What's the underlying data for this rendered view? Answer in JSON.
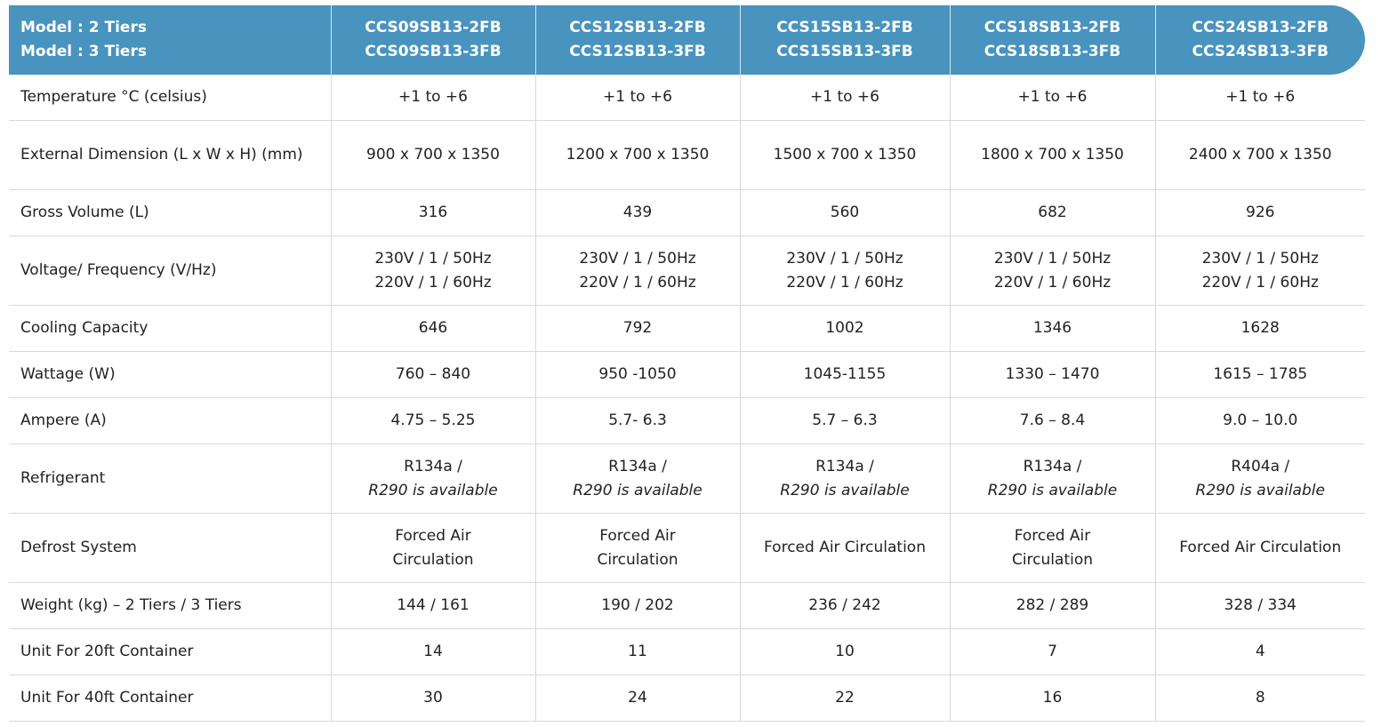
{
  "header": {
    "label_line1": "Model : 2 Tiers",
    "label_line2": "Model : 3 Tiers",
    "models": [
      {
        "tier2": "CCS09SB13-2FB",
        "tier3": "CCS09SB13-3FB"
      },
      {
        "tier2": "CCS12SB13-2FB",
        "tier3": "CCS12SB13-3FB"
      },
      {
        "tier2": "CCS15SB13-2FB",
        "tier3": "CCS15SB13-3FB"
      },
      {
        "tier2": "CCS18SB13-2FB",
        "tier3": "CCS18SB13-3FB"
      },
      {
        "tier2": "CCS24SB13-2FB",
        "tier3": "CCS24SB13-3FB"
      }
    ]
  },
  "rows": [
    {
      "label": "Temperature °C (celsius)",
      "values": [
        "+1 to +6",
        "+1 to +6",
        "+1 to +6",
        "+1 to +6",
        "+1 to +6"
      ]
    },
    {
      "label": "External Dimension (L x W x H) (mm)",
      "values": [
        "900 x 700 x 1350",
        "1200 x 700 x 1350",
        "1500 x 700 x 1350",
        "1800 x 700 x 1350",
        "2400 x 700 x 1350"
      ]
    },
    {
      "label": "Gross Volume (L)",
      "values": [
        "316",
        "439",
        "560",
        "682",
        "926"
      ]
    },
    {
      "label": "Voltage/ Frequency (V/Hz)",
      "values": [
        {
          "line1": "230V / 1 / 50Hz",
          "line2": "220V / 1 / 60Hz"
        },
        {
          "line1": "230V / 1 / 50Hz",
          "line2": "220V / 1 / 60Hz"
        },
        {
          "line1": "230V / 1 / 50Hz",
          "line2": "220V / 1 / 60Hz"
        },
        {
          "line1": "230V / 1 / 50Hz",
          "line2": "220V / 1 / 60Hz"
        },
        {
          "line1": "230V / 1 / 50Hz",
          "line2": "220V / 1 / 60Hz"
        }
      ]
    },
    {
      "label": "Cooling Capacity",
      "values": [
        "646",
        "792",
        "1002",
        "1346",
        "1628"
      ]
    },
    {
      "label": "Wattage (W)",
      "values": [
        "760 – 840",
        "950 -1050",
        "1045-1155",
        "1330 – 1470",
        "1615 – 1785"
      ]
    },
    {
      "label": "Ampere (A)",
      "values": [
        "4.75 – 5.25",
        "5.7- 6.3",
        "5.7 – 6.3",
        "7.6 – 8.4",
        "9.0 – 10.0"
      ]
    },
    {
      "label": "Refrigerant",
      "values": [
        {
          "line1": "R134a /",
          "line2": "R290 is available"
        },
        {
          "line1": "R134a /",
          "line2": "R290 is available"
        },
        {
          "line1": "R134a /",
          "line2": "R290 is available"
        },
        {
          "line1": "R134a /",
          "line2": "R290 is available"
        },
        {
          "line1": "R404a /",
          "line2": "R290 is available"
        }
      ]
    },
    {
      "label": "Defrost System",
      "values": [
        {
          "line1": "Forced Air",
          "line2": "Circulation"
        },
        {
          "line1": "Forced Air",
          "line2": "Circulation"
        },
        "Forced Air Circulation",
        {
          "line1": "Forced Air",
          "line2": "Circulation"
        },
        "Forced Air Circulation"
      ]
    },
    {
      "label": "Weight (kg) – 2 Tiers / 3 Tiers",
      "values": [
        "144 / 161",
        "190 / 202",
        "236 / 242",
        "282 / 289",
        "328 / 334"
      ]
    },
    {
      "label": "Unit For 20ft Container",
      "values": [
        "14",
        "11",
        "10",
        "7",
        "4"
      ]
    },
    {
      "label": "Unit For 40ft Container",
      "values": [
        "30",
        "24",
        "22",
        "16",
        "8"
      ]
    }
  ],
  "colors": {
    "header_background": "#4993bf",
    "header_text": "#ffffff",
    "body_text": "#222222",
    "grid_lines": "#d9d9d9"
  }
}
